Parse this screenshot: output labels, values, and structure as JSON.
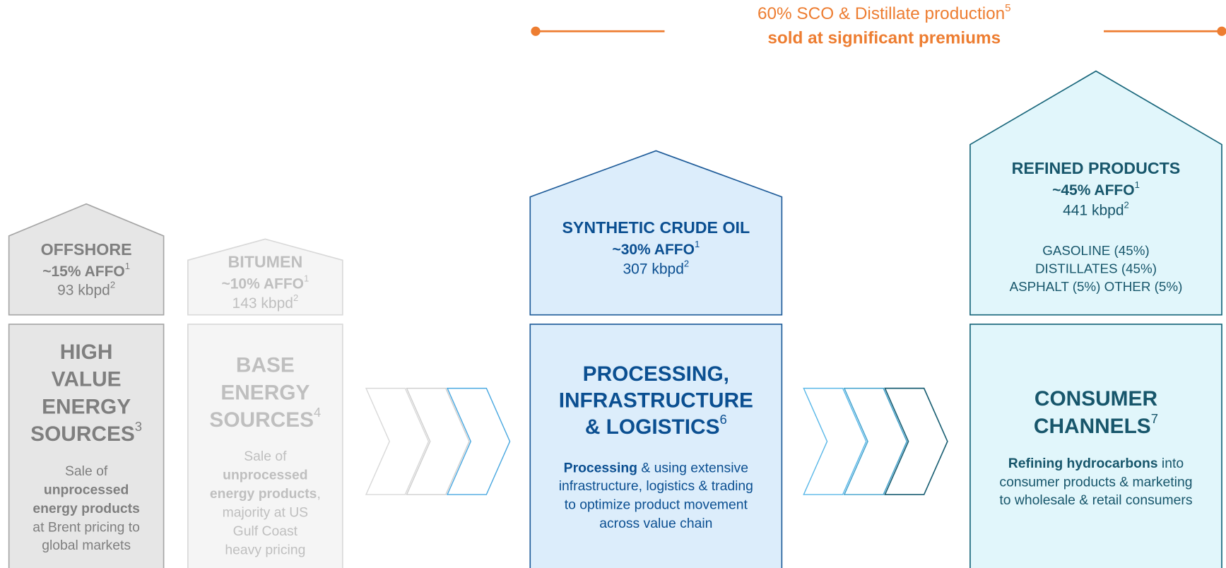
{
  "banner": {
    "lines": [
      [
        {
          "text": "60% SCO & Distillate production"
        },
        {
          "text": "5",
          "sup": true
        }
      ],
      [
        {
          "text": "sold at significant premiums",
          "bold": true
        }
      ]
    ],
    "color": "#ed7d31"
  },
  "columns": [
    {
      "style": {
        "fill": "#e6e6e6",
        "stroke": "#a6a6a6",
        "text": "#7f7f7f"
      },
      "house": [
        [
          {
            "text": "OFFSHORE",
            "bold": true
          }
        ],
        [
          {
            "text": "~15% AFFO",
            "bold": true
          },
          {
            "text": "1",
            "sup": true
          }
        ],
        [
          {
            "text": "93 kbpd"
          },
          {
            "text": "2",
            "sup": true
          }
        ]
      ],
      "title": [
        [
          {
            "text": "HIGH",
            "bold": true
          }
        ],
        [
          {
            "text": "VALUE",
            "bold": true
          }
        ],
        [
          {
            "text": "ENERGY",
            "bold": true
          }
        ],
        [
          {
            "text": "SOURCES",
            "bold": true
          },
          {
            "text": "3",
            "sup": true
          }
        ]
      ],
      "description": [
        [
          {
            "text": "Sale of"
          }
        ],
        [
          {
            "text": "unprocessed",
            "bold": true
          }
        ],
        [
          {
            "text": "energy products",
            "bold": true
          }
        ],
        [
          {
            "text": "at Brent pricing to"
          }
        ],
        [
          {
            "text": "global markets"
          }
        ]
      ]
    },
    {
      "style": {
        "fill": "#f5f5f5",
        "stroke": "#d9d9d9",
        "text": "#bfbfbf"
      },
      "house": [
        [
          {
            "text": "BITUMEN",
            "bold": true
          }
        ],
        [
          {
            "text": "~10% AFFO",
            "bold": true
          },
          {
            "text": "1",
            "sup": true
          }
        ],
        [
          {
            "text": "143 kbpd"
          },
          {
            "text": "2",
            "sup": true
          }
        ]
      ],
      "title": [
        [
          {
            "text": "BASE",
            "bold": true
          }
        ],
        [
          {
            "text": "ENERGY",
            "bold": true
          }
        ],
        [
          {
            "text": "SOURCES",
            "bold": true
          },
          {
            "text": "4",
            "sup": true
          }
        ]
      ],
      "description": [
        [
          {
            "text": "Sale of"
          }
        ],
        [
          {
            "text": "unprocessed",
            "bold": true
          }
        ],
        [
          {
            "text": "energy products",
            "bold": true
          },
          {
            "text": ","
          }
        ],
        [
          {
            "text": "majority at US"
          }
        ],
        [
          {
            "text": "Gulf Coast"
          }
        ],
        [
          {
            "text": "heavy pricing"
          }
        ]
      ]
    },
    {
      "style": {
        "fill": "#dcedfb",
        "stroke": "#1f5c99",
        "text": "#0b4f91"
      },
      "house": [
        [
          {
            "text": "SYNTHETIC CRUDE OIL",
            "bold": true
          }
        ],
        [
          {
            "text": "~30% AFFO",
            "bold": true
          },
          {
            "text": "1",
            "sup": true
          }
        ],
        [
          {
            "text": "307 kbpd"
          },
          {
            "text": "2",
            "sup": true
          }
        ]
      ],
      "title": [
        [
          {
            "text": "PROCESSING,",
            "bold": true
          }
        ],
        [
          {
            "text": "INFRASTRUCTURE",
            "bold": true
          }
        ],
        [
          {
            "text": "& LOGISTICS",
            "bold": true
          },
          {
            "text": "6",
            "sup": true
          }
        ]
      ],
      "description": [
        [
          {
            "text": "Processing",
            "bold": true
          },
          {
            "text": " & using extensive"
          }
        ],
        [
          {
            "text": "infrastructure, logistics & trading"
          }
        ],
        [
          {
            "text": "to optimize product movement"
          }
        ],
        [
          {
            "text": "across value chain"
          }
        ]
      ]
    },
    {
      "style": {
        "fill": "#e1f6fb",
        "stroke": "#17657a",
        "text": "#17566b"
      },
      "house": [
        [
          {
            "text": "REFINED PRODUCTS",
            "bold": true
          }
        ],
        [
          {
            "text": "~45% AFFO",
            "bold": true
          },
          {
            "text": "1",
            "sup": true
          }
        ],
        [
          {
            "text": "441 kbpd"
          },
          {
            "text": "2",
            "sup": true
          }
        ],
        [
          {
            "text": "GASOLINE (45%)"
          }
        ],
        [
          {
            "text": "DISTILLATES (45%)"
          }
        ],
        [
          {
            "text": "ASPHALT (5%) OTHER (5%)"
          }
        ]
      ],
      "title": [
        [
          {
            "text": "CONSUMER",
            "bold": true
          }
        ],
        [
          {
            "text": "CHANNELS",
            "bold": true
          },
          {
            "text": "7",
            "sup": true
          }
        ]
      ],
      "description": [
        [
          {
            "text": "Refining hydrocarbons",
            "bold": true
          },
          {
            "text": " into"
          }
        ],
        [
          {
            "text": "consumer products & marketing"
          }
        ],
        [
          {
            "text": "to wholesale & retail consumers"
          }
        ]
      ]
    }
  ]
}
